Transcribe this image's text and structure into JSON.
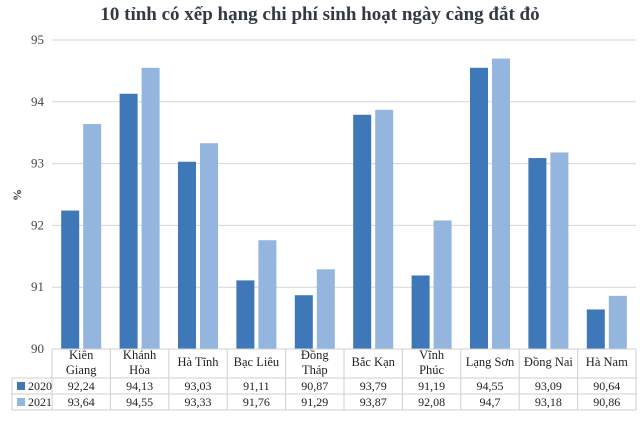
{
  "chart_data": {
    "type": "bar",
    "title": "10 tỉnh có xếp hạng chi phí sinh hoạt ngày càng đắt đỏ",
    "ylabel": "%",
    "xlabel": "",
    "ylim": [
      90,
      95
    ],
    "yticks": [
      "90",
      "91",
      "92",
      "93",
      "94",
      "95"
    ],
    "grid": true,
    "legend": "data-table-left",
    "categories": [
      [
        "Kiên",
        "Giang"
      ],
      [
        "Khánh",
        "Hòa"
      ],
      [
        "Hà Tĩnh"
      ],
      [
        "Bạc Liêu"
      ],
      [
        "Đồng",
        "Tháp"
      ],
      [
        "Bắc Kạn"
      ],
      [
        "Vĩnh",
        "Phúc"
      ],
      [
        "Lạng Sơn"
      ],
      [
        "Đồng Nai"
      ],
      [
        "Hà Nam"
      ]
    ],
    "series": [
      {
        "name": "2020",
        "color": "#3f78b8",
        "values": [
          92.24,
          94.13,
          93.03,
          91.11,
          90.87,
          93.79,
          91.19,
          94.55,
          93.09,
          90.64
        ],
        "labels": [
          "92,24",
          "94,13",
          "93,03",
          "91,11",
          "90,87",
          "93,79",
          "91,19",
          "94,55",
          "93,09",
          "90,64"
        ]
      },
      {
        "name": "2021",
        "color": "#93b5de",
        "values": [
          93.64,
          94.55,
          93.33,
          91.76,
          91.29,
          93.87,
          92.08,
          94.7,
          93.18,
          90.86
        ],
        "labels": [
          "93,64",
          "94,55",
          "93,33",
          "91,76",
          "91,29",
          "93,87",
          "92,08",
          "94,7",
          "93,18",
          "90,86"
        ]
      }
    ]
  }
}
